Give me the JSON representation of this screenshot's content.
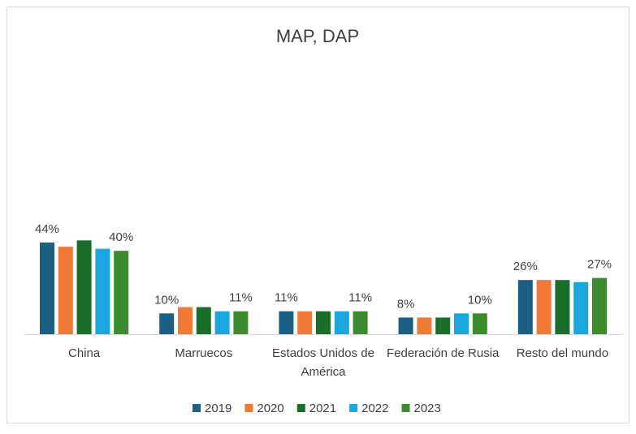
{
  "chart_data": {
    "type": "bar",
    "title": "MAP, DAP",
    "categories": [
      "China",
      "Marruecos",
      "Estados Unidos de América",
      "Federación de Rusia",
      "Resto del mundo"
    ],
    "series": [
      {
        "name": "2019",
        "color": "#1b5f84",
        "values": [
          44,
          10,
          11,
          8,
          26
        ],
        "value_labels": [
          "44%",
          "10%",
          "11%",
          "8%",
          "26%"
        ]
      },
      {
        "name": "2020",
        "color": "#f07a35",
        "values": [
          42,
          13,
          11,
          8,
          26
        ]
      },
      {
        "name": "2021",
        "color": "#1a6e2a",
        "values": [
          45,
          13,
          11,
          8,
          26
        ]
      },
      {
        "name": "2022",
        "color": "#1aa7e0",
        "values": [
          41,
          11,
          11,
          10,
          25
        ]
      },
      {
        "name": "2023",
        "color": "#3c8c2f",
        "values": [
          40,
          11,
          11,
          10,
          27
        ],
        "value_labels": [
          "40%",
          "11%",
          "11%",
          "10%",
          "27%"
        ]
      }
    ],
    "ylim": [
      0,
      100
    ],
    "legend": "bottom"
  }
}
